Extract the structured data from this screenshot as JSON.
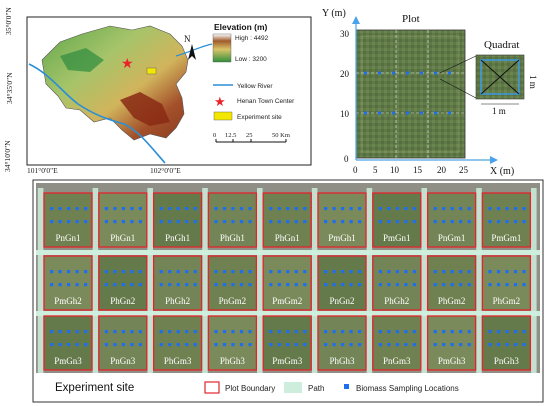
{
  "map": {
    "lat_labels": [
      "35°0'0\"N",
      "34°35'0\"N",
      "34°10'0\"N"
    ],
    "lon_labels": [
      "101°0'0\"E",
      "102°0'0\"E"
    ],
    "north_label": "N",
    "legend": {
      "elevation_title": "Elevation (m)",
      "high_label": "High : 4492",
      "low_label": "Low : 3200",
      "river_label": "Yellow River",
      "town_label": "Henan Town Center",
      "site_label": "Experiment site"
    },
    "scale_ticks": [
      "0",
      "12.5",
      "25",
      "50 Km"
    ],
    "colors": {
      "river": "#2a8fd6",
      "town": "#e8232a",
      "site": "#f3e600"
    }
  },
  "plot_panel": {
    "title": "Plot",
    "y_axis_label": "Y (m)",
    "x_axis_label": "X (m)",
    "y_ticks": [
      "0",
      "10",
      "20",
      "30"
    ],
    "x_ticks": [
      "0",
      "5",
      "10",
      "15",
      "20",
      "25"
    ],
    "quadrat_title": "Quadrat",
    "quadrat_dim_h": "1 m",
    "quadrat_dim_v": "1 m"
  },
  "site": {
    "title": "Experiment site",
    "rows": [
      [
        "PnGn1",
        "PhGn1",
        "PnGh1",
        "PhGh1",
        "PhGn1",
        "PmGh1",
        "PmGn1",
        "PnGm1",
        "PmGm1"
      ],
      [
        "PmGh2",
        "PhGn2",
        "PhGh2",
        "PnGm2",
        "PmGm2",
        "PnGn2",
        "PhGh2",
        "PhGm2",
        "PhGm2"
      ],
      [
        "PmGn3",
        "PnGn3",
        "PhGm3",
        "PhGh3",
        "PmGm3",
        "PhGh3",
        "PnGm3",
        "PmGh3",
        "PnGh3"
      ]
    ],
    "legend": {
      "boundary_label": "Plot Boundary",
      "path_label": "Path",
      "sampling_label": "Biomass Sampling Locations"
    },
    "colors": {
      "boundary": "#e3242b",
      "path": "#cdeedd",
      "sampling": "#1e6ff0"
    }
  }
}
